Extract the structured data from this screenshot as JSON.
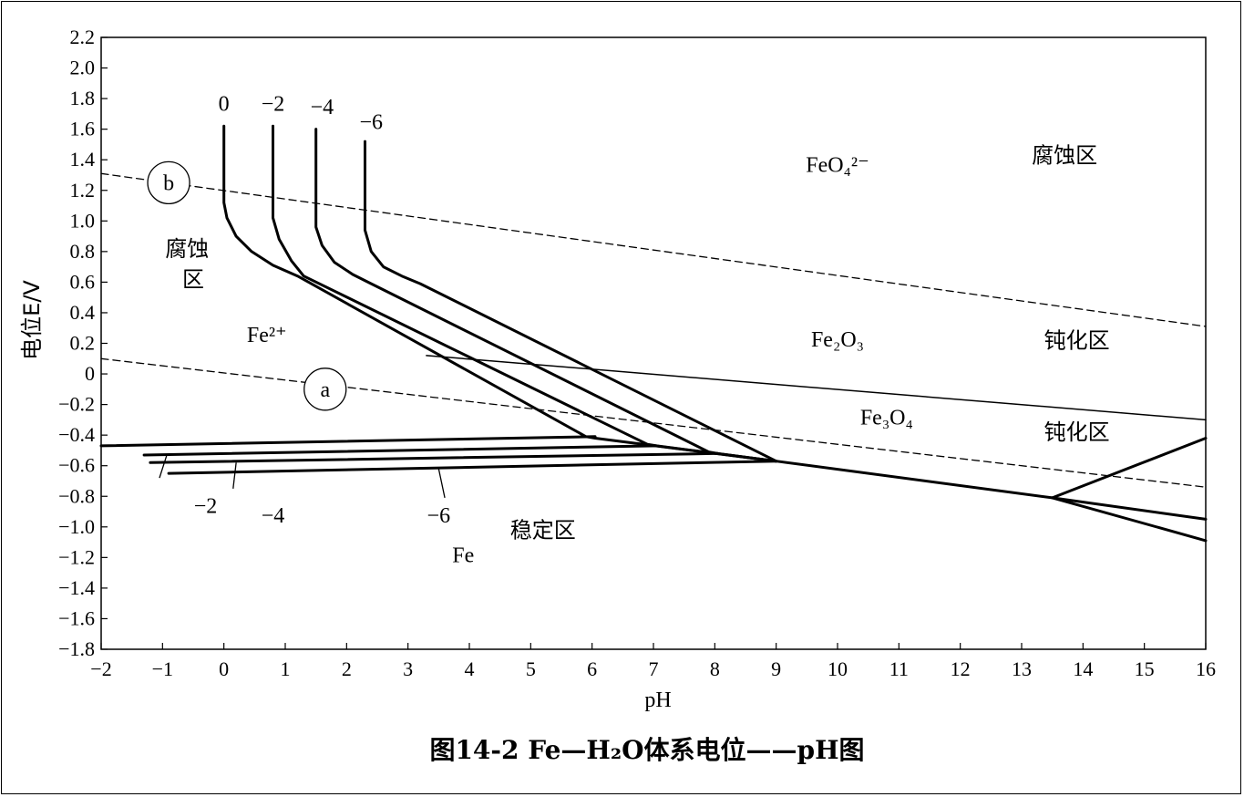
{
  "chart_data": {
    "type": "line",
    "title": "图14-2    Fe—H₂O体系电位——pH图",
    "xlabel": "pH",
    "ylabel": "电位E/V",
    "xlim": [
      -2,
      16
    ],
    "ylim": [
      -1.8,
      2.2
    ],
    "xticks": [
      -2,
      -1,
      0,
      1,
      2,
      3,
      4,
      5,
      6,
      7,
      8,
      9,
      10,
      11,
      12,
      13,
      14,
      15,
      16
    ],
    "yticks": [
      2.2,
      2.0,
      1.8,
      1.6,
      1.4,
      1.2,
      1.0,
      0.8,
      0.6,
      0.4,
      0.2,
      0,
      -0.2,
      -0.4,
      -0.6,
      -0.8,
      -1.0,
      -1.2,
      -1.4,
      -1.6,
      -1.8
    ],
    "grid": false,
    "series": [
      {
        "name": "0",
        "style": "bold",
        "x": [
          0,
          0,
          0.05,
          0.2,
          0.45,
          0.8,
          1.2,
          5.9,
          6.05,
          9.0
        ],
        "y": [
          1.62,
          1.12,
          1.02,
          0.9,
          0.8,
          0.71,
          0.64,
          -0.41,
          -0.42,
          -0.57
        ]
      },
      {
        "name": "-2",
        "style": "bold",
        "x": [
          0.8,
          0.8,
          0.9,
          1.1,
          1.3,
          6.9,
          7.05,
          9.0
        ],
        "y": [
          1.62,
          1.02,
          0.88,
          0.74,
          0.64,
          -0.46,
          -0.47,
          -0.57
        ]
      },
      {
        "name": "-4",
        "style": "bold",
        "x": [
          1.5,
          1.5,
          1.6,
          1.8,
          2.1,
          2.4,
          7.9,
          8.05,
          9.0
        ],
        "y": [
          1.6,
          0.96,
          0.84,
          0.73,
          0.65,
          0.59,
          -0.51,
          -0.52,
          -0.57
        ]
      },
      {
        "name": "-6",
        "style": "bold",
        "x": [
          2.3,
          2.3,
          2.4,
          2.6,
          2.9,
          3.2,
          9.0
        ],
        "y": [
          1.52,
          0.94,
          0.8,
          0.7,
          0.64,
          0.59,
          -0.57
        ]
      },
      {
        "name": "-2",
        "style": "bold",
        "x": [
          -2.0,
          6.05
        ],
        "y": [
          -0.47,
          -0.41
        ]
      },
      {
        "name": "-2",
        "style": "bold",
        "x": [
          -1.3,
          7.05
        ],
        "y": [
          -0.53,
          -0.47
        ]
      },
      {
        "name": "-4",
        "style": "bold",
        "x": [
          -1.2,
          8.05
        ],
        "y": [
          -0.58,
          -0.52
        ]
      },
      {
        "name": "-6",
        "style": "bold",
        "x": [
          -0.9,
          9.0
        ],
        "y": [
          -0.65,
          -0.57
        ]
      },
      {
        "name": "",
        "style": "bold",
        "x": [
          9.0,
          13.5
        ],
        "y": [
          -0.57,
          -0.81
        ]
      },
      {
        "name": "",
        "style": "bold",
        "x": [
          13.5,
          16.0
        ],
        "y": [
          -0.81,
          -1.09
        ]
      },
      {
        "name": "",
        "style": "bold",
        "x": [
          13.5,
          16.0
        ],
        "y": [
          -0.81,
          -0.95
        ]
      },
      {
        "name": "",
        "style": "bold",
        "x": [
          13.5,
          16.0
        ],
        "y": [
          -0.81,
          -0.42
        ]
      },
      {
        "name": "",
        "style": "thin",
        "x": [
          3.3,
          16.0
        ],
        "y": [
          0.12,
          -0.3
        ]
      },
      {
        "name": "a",
        "style": "dashed",
        "x": [
          -2.0,
          16.0
        ],
        "y": [
          0.1,
          -0.74
        ]
      },
      {
        "name": "b",
        "style": "dashed",
        "x": [
          -2.0,
          16.0
        ],
        "y": [
          1.31,
          0.31
        ]
      }
    ],
    "annotations": [
      {
        "text": "0",
        "x": 0.0,
        "y": 1.72
      },
      {
        "text": "−2",
        "x": 0.8,
        "y": 1.72
      },
      {
        "text": "−4",
        "x": 1.6,
        "y": 1.7
      },
      {
        "text": "−6",
        "x": 2.4,
        "y": 1.6
      },
      {
        "text": "−2",
        "x": -0.3,
        "y": -0.91
      },
      {
        "text": "−4",
        "x": 0.8,
        "y": -0.97
      },
      {
        "text": "−6",
        "x": 3.5,
        "y": -0.97
      },
      {
        "text": "腐蚀",
        "x": -0.6,
        "y": 0.77
      },
      {
        "text": "区",
        "x": -0.5,
        "y": 0.57
      },
      {
        "text": "Fe²⁺",
        "x": 0.7,
        "y": 0.21
      },
      {
        "text": "FeO₄²⁻",
        "x": 10.0,
        "y": 1.32
      },
      {
        "text": "腐蚀区",
        "x": 13.7,
        "y": 1.38
      },
      {
        "text": "Fe₂O₃",
        "x": 10.0,
        "y": 0.18
      },
      {
        "text": "钝化区",
        "x": 13.9,
        "y": 0.17
      },
      {
        "text": "Fe₃O₄",
        "x": 10.8,
        "y": -0.33
      },
      {
        "text": "钝化区",
        "x": 13.9,
        "y": -0.43
      },
      {
        "text": "稳定区",
        "x": 5.2,
        "y": -1.07
      },
      {
        "text": "Fe",
        "x": 3.9,
        "y": -1.23
      }
    ],
    "circle_labels": [
      {
        "text": "a",
        "x": 1.65,
        "y": -0.1
      },
      {
        "text": "b",
        "x": -0.9,
        "y": 1.25
      }
    ]
  }
}
